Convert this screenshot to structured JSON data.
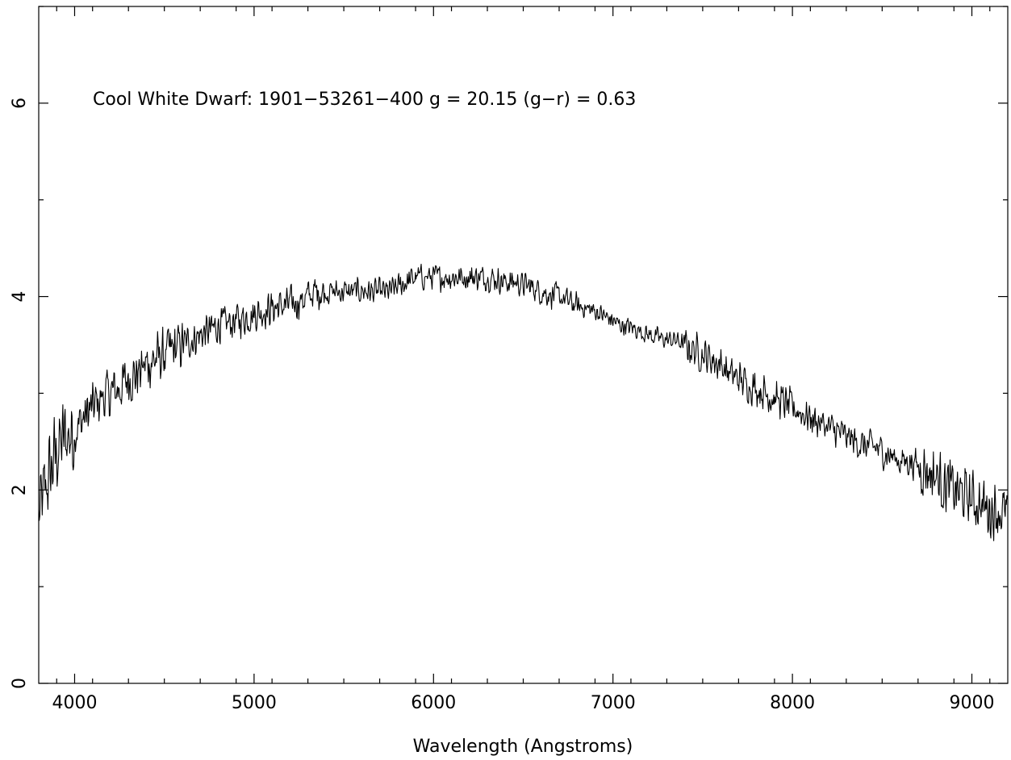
{
  "chart_data": {
    "type": "line",
    "title": "",
    "annotation": "Cool White Dwarf: 1901−53261−400 g = 20.15 (g−r) = 0.63",
    "xlabel": "Wavelength (Angstroms)",
    "ylabel": "",
    "xlim": [
      3800,
      9200
    ],
    "ylim": [
      0,
      7
    ],
    "x_ticks": [
      4000,
      5000,
      6000,
      7000,
      8000,
      9000
    ],
    "x_tick_labels": [
      "4000",
      "5000",
      "6000",
      "7000",
      "8000",
      "9000"
    ],
    "y_ticks": [
      0,
      2,
      4,
      6
    ],
    "y_tick_labels": [
      "0",
      "2",
      "4",
      "6"
    ],
    "grid": false,
    "legend": "none",
    "series": [
      {
        "x": [
          3800,
          3850,
          3900,
          3950,
          4000,
          4050,
          4100,
          4150,
          4200,
          4250,
          4300,
          4350,
          4400,
          4450,
          4500,
          4550,
          4600,
          4650,
          4700,
          4750,
          4800,
          4850,
          4900,
          4950,
          5000,
          5050,
          5100,
          5150,
          5200,
          5250,
          5300,
          5350,
          5400,
          5450,
          5500,
          5550,
          5600,
          5650,
          5700,
          5750,
          5800,
          5850,
          5900,
          5950,
          6000,
          6050,
          6100,
          6150,
          6200,
          6250,
          6300,
          6350,
          6400,
          6450,
          6500,
          6550,
          6600,
          6650,
          6700,
          6750,
          6800,
          6850,
          6900,
          6950,
          7000,
          7050,
          7100,
          7150,
          7200,
          7250,
          7300,
          7350,
          7400,
          7450,
          7500,
          7550,
          7600,
          7650,
          7700,
          7750,
          7800,
          7850,
          7900,
          7950,
          8000,
          8050,
          8100,
          8150,
          8200,
          8250,
          8300,
          8350,
          8400,
          8450,
          8500,
          8550,
          8600,
          8650,
          8700,
          8750,
          8800,
          8850,
          8900,
          8950,
          9000,
          9050,
          9100,
          9150,
          9200
        ],
        "y": [
          1.7,
          2.1,
          2.4,
          2.55,
          2.6,
          2.75,
          2.85,
          2.95,
          3.0,
          3.05,
          3.15,
          3.2,
          3.3,
          3.35,
          3.4,
          3.45,
          3.5,
          3.55,
          3.6,
          3.65,
          3.7,
          3.72,
          3.75,
          3.78,
          3.82,
          3.85,
          3.88,
          3.9,
          3.92,
          3.95,
          4.0,
          4.05,
          4.05,
          4.05,
          4.05,
          4.05,
          4.06,
          4.05,
          4.05,
          4.05,
          4.1,
          4.15,
          4.2,
          4.2,
          4.2,
          4.2,
          4.2,
          4.2,
          4.2,
          4.2,
          4.2,
          4.18,
          4.15,
          4.15,
          4.12,
          4.1,
          4.05,
          4.02,
          4.0,
          3.95,
          3.9,
          3.88,
          3.85,
          3.8,
          3.75,
          3.7,
          3.68,
          3.65,
          3.6,
          3.58,
          3.55,
          3.55,
          3.5,
          3.45,
          3.4,
          3.35,
          3.3,
          3.2,
          3.15,
          3.1,
          3.05,
          3.0,
          2.95,
          2.9,
          2.85,
          2.8,
          2.75,
          2.7,
          2.65,
          2.6,
          2.55,
          2.5,
          2.45,
          2.45,
          2.4,
          2.35,
          2.3,
          2.3,
          2.25,
          2.2,
          2.15,
          2.05,
          2.0,
          1.95,
          1.9,
          1.85,
          1.8,
          1.78,
          1.75
        ]
      }
    ]
  }
}
